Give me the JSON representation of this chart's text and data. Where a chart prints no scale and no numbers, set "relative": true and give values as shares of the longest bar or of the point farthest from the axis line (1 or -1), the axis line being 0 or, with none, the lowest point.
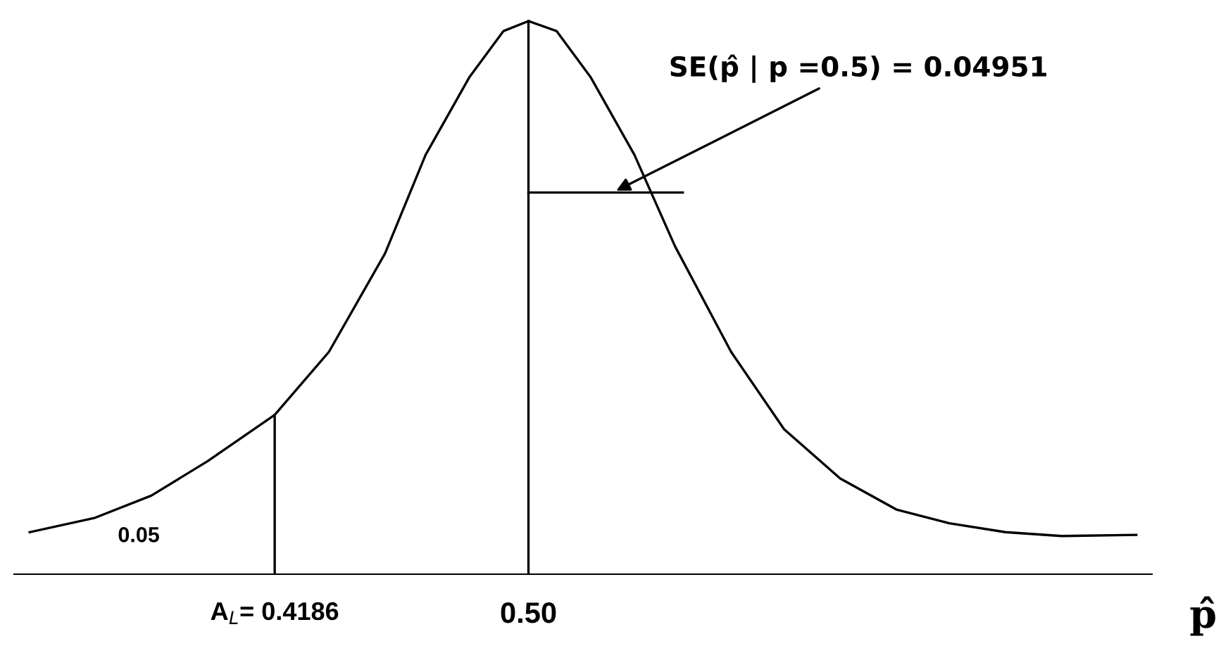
{
  "chart_data": {
    "type": "line",
    "relative": true,
    "xlabel": "p̂",
    "xlim": [
      0.335,
      0.7
    ],
    "xticks": [
      {
        "value": 0.4186,
        "label": "A$_{L}$= 0.4186"
      },
      {
        "value": 0.5,
        "label": "0.50"
      }
    ],
    "grid": false,
    "legend": false,
    "marker": "none",
    "line_style": "solid",
    "tick_labels": "x",
    "series": [
      {
        "color": "#000000",
        "x": [
          0.34,
          0.361,
          0.379,
          0.397,
          0.4186,
          0.436,
          0.454,
          0.467,
          0.481,
          0.492,
          0.5,
          0.509,
          0.52,
          0.534,
          0.547,
          0.565,
          0.582,
          0.6,
          0.618,
          0.635,
          0.653,
          0.671,
          0.695
        ],
        "values": [
          0.076,
          0.102,
          0.142,
          0.204,
          0.288,
          0.402,
          0.58,
          0.758,
          0.898,
          0.982,
          1,
          0.982,
          0.898,
          0.758,
          0.593,
          0.402,
          0.262,
          0.173,
          0.117,
          0.092,
          0.076,
          0.069,
          0.071
        ]
      },
      {
        "color": "#000000",
        "x": [
          0.4186,
          0.4186
        ],
        "values": [
          0,
          0.288
        ]
      },
      {
        "color": "#000000",
        "x": [
          0.5,
          0.5
        ],
        "values": [
          0,
          1
        ]
      },
      {
        "color": "#000000",
        "x": [
          0.5,
          0.54951
        ],
        "values": [
          0.69,
          0.69
        ]
      }
    ],
    "annotations": [
      {
        "text": "SE(p̂ | p =0.5) = 0.04951",
        "x": 0.527,
        "y": 0.69
      },
      "0.05"
    ]
  }
}
